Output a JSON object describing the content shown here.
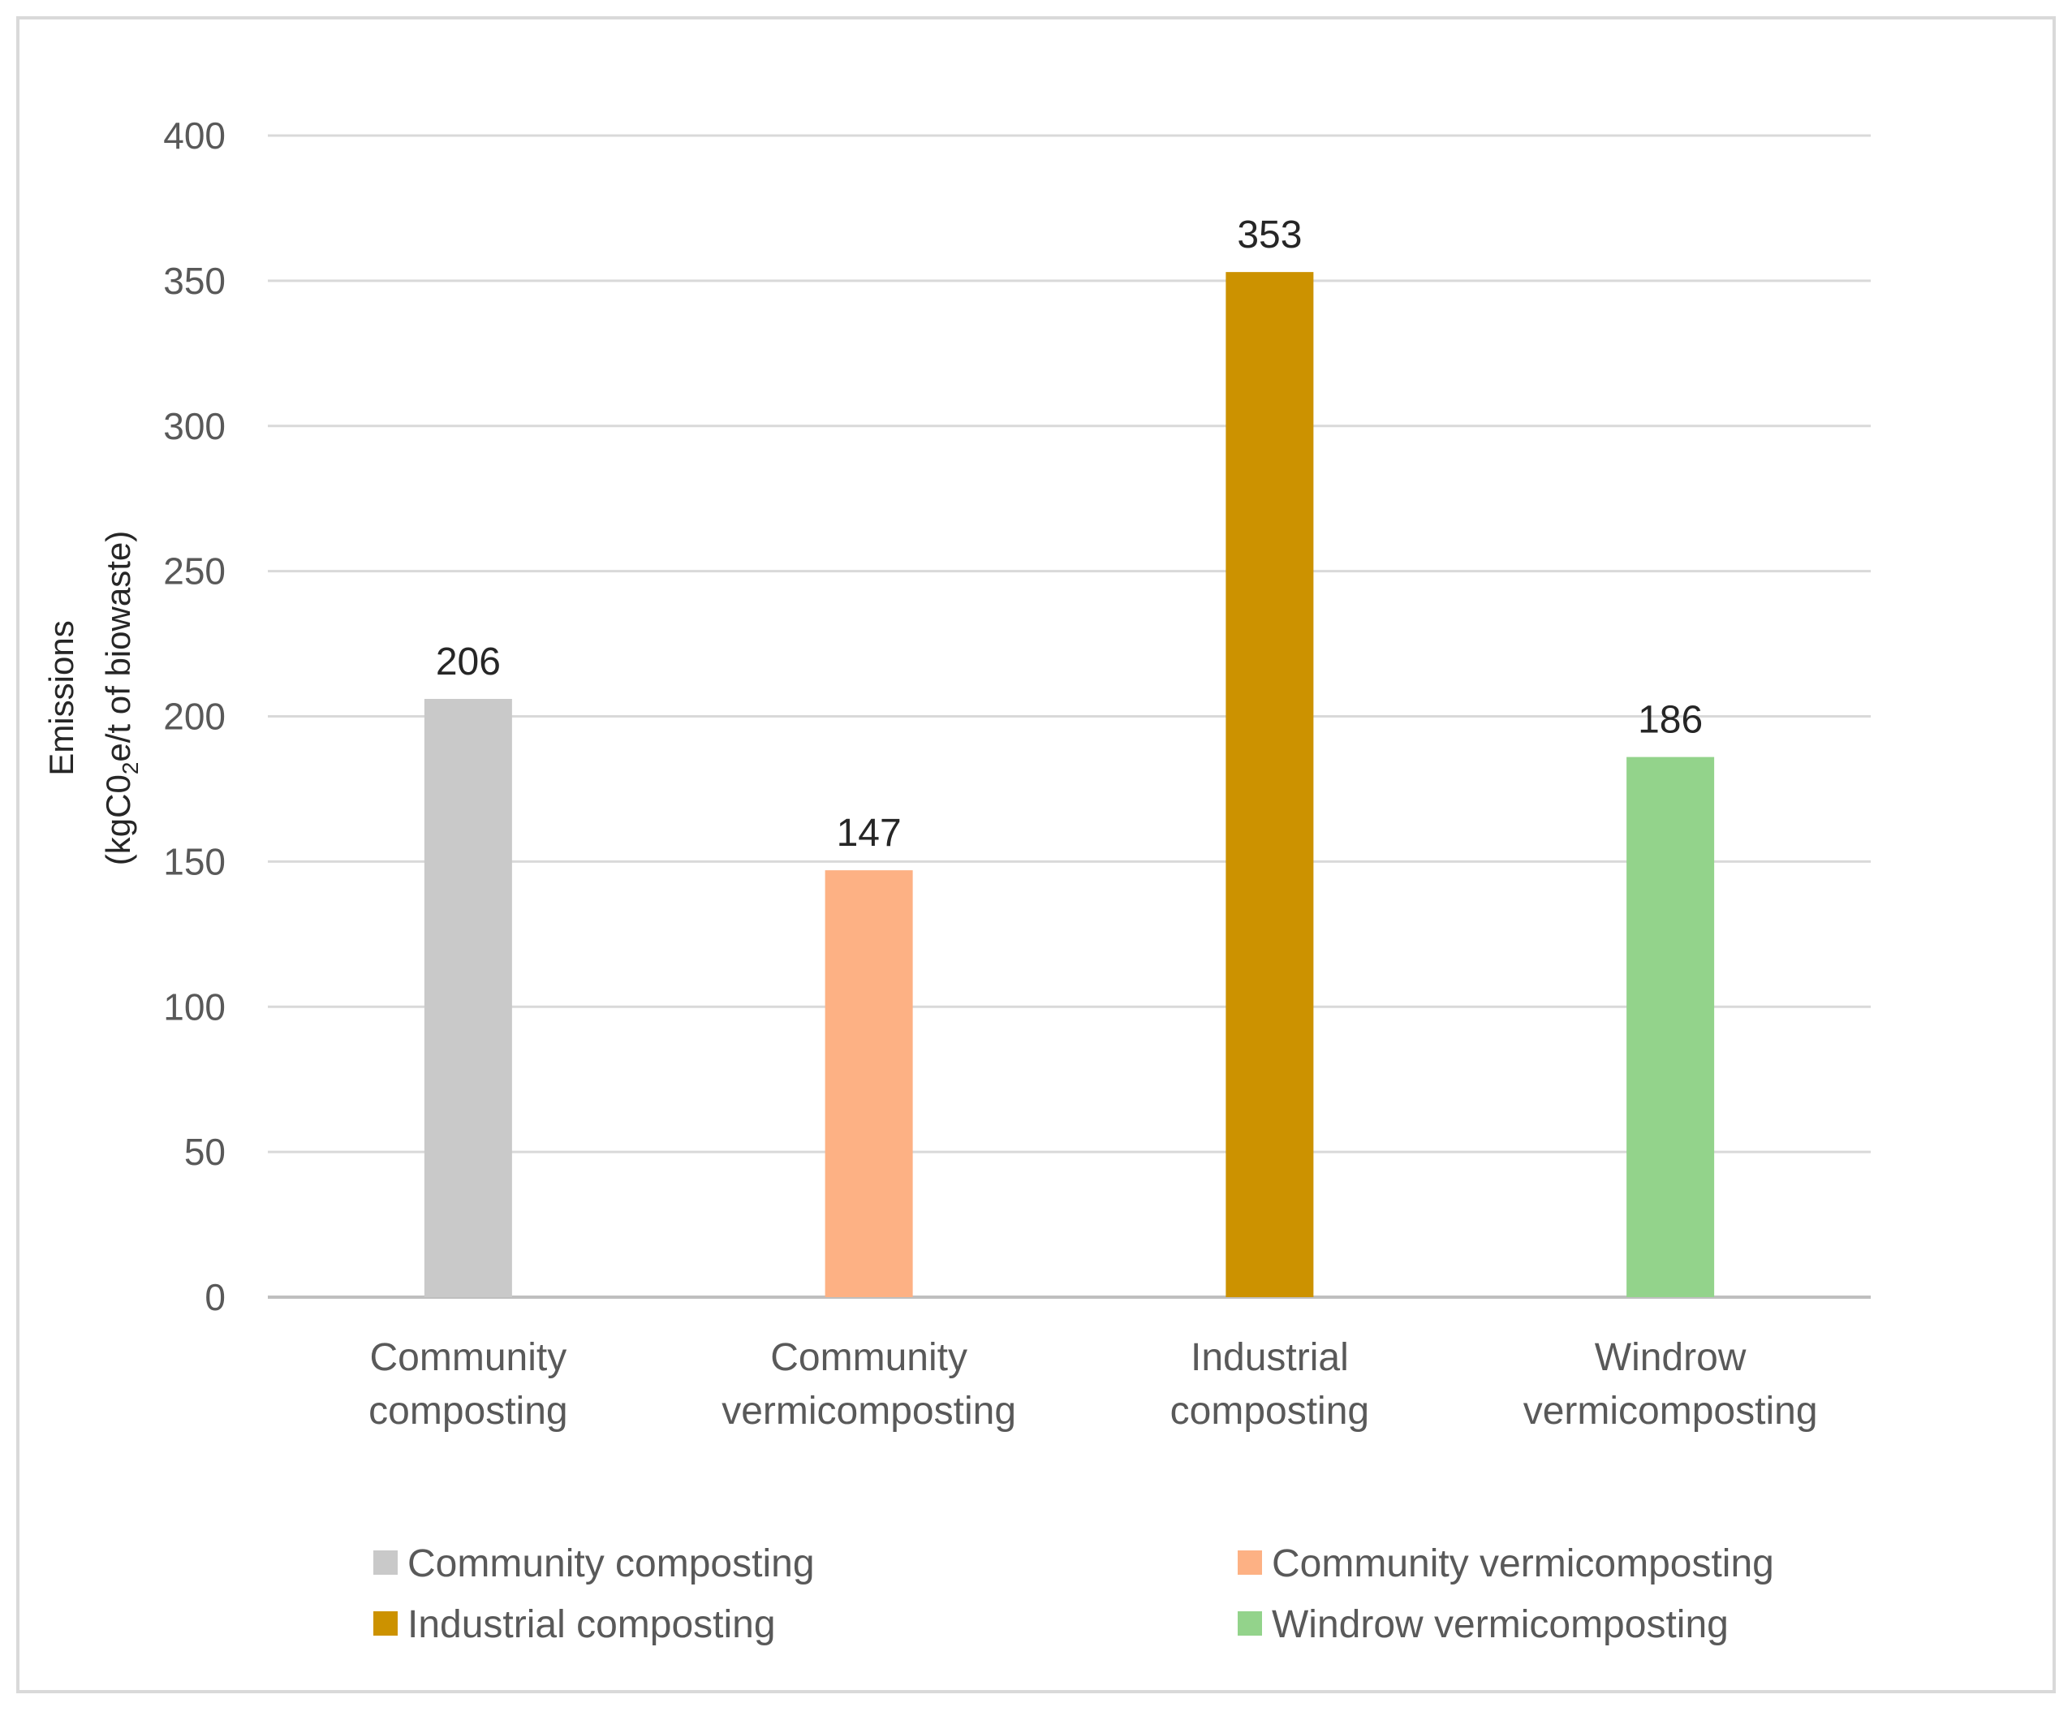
{
  "chart_data": {
    "type": "bar",
    "title": "",
    "xlabel": "",
    "ylabel": {
      "line1": "Emissions",
      "line2_prefix": "(kgC0",
      "line2_subscript": "2",
      "line2_suffix": "e/t of biowaste)"
    },
    "ylim": [
      0,
      400
    ],
    "yticks": [
      0,
      50,
      100,
      150,
      200,
      250,
      300,
      350,
      400
    ],
    "grid": true,
    "categories": [
      {
        "line1": "Community",
        "line2": "composting"
      },
      {
        "line1": "Community",
        "line2": "vermicomposting"
      },
      {
        "line1": "Industrial",
        "line2": "composting"
      },
      {
        "line1": "Windrow",
        "line2": "vermicomposting"
      }
    ],
    "values": [
      206,
      147,
      353,
      186
    ],
    "colors": [
      "#c9c9c9",
      "#fdb184",
      "#cc9200",
      "#93d38b"
    ],
    "legend": {
      "placement": "bottom",
      "entries": [
        {
          "label": "Community composting",
          "color": "#c9c9c9"
        },
        {
          "label": "Community vermicomposting",
          "color": "#fdb184"
        },
        {
          "label": "Industrial composting",
          "color": "#cc9200"
        },
        {
          "label": "Windrow vermicomposting",
          "color": "#93d38b"
        }
      ]
    }
  }
}
